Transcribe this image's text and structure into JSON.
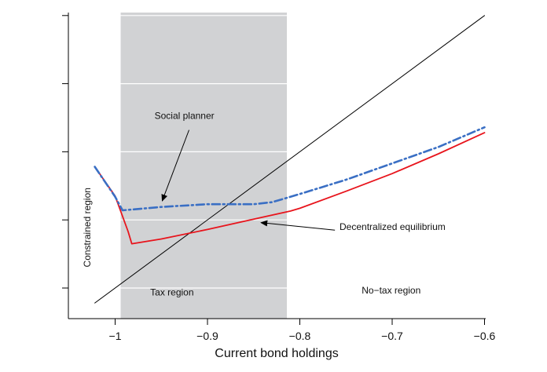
{
  "chart_data": {
    "type": "line",
    "xlabel": "Current bond holdings",
    "ylabel": "",
    "xlim": [
      -1.05,
      -0.6
    ],
    "ylim": [
      -1.05,
      -0.6
    ],
    "x_ticks": [
      -1.0,
      -0.9,
      -0.8,
      -0.7,
      -0.6
    ],
    "x_tick_labels": [
      "−1",
      "−0.9",
      "−0.8",
      "−0.7",
      "−0.6"
    ],
    "y_ticks": [
      -1.0,
      -0.9,
      -0.8,
      -0.7,
      -0.6
    ],
    "y_tick_labels": [
      "",
      "",
      "",
      "",
      ""
    ],
    "grid": "horizontal",
    "shaded_region": {
      "x_start": -0.994,
      "x_end": -0.814,
      "color": "#d1d2d4"
    },
    "series": [
      {
        "name": "",
        "style": "solid",
        "color": "#000000",
        "x": [
          -1.022,
          -0.6
        ],
        "y": [
          -1.022,
          -0.6
        ]
      },
      {
        "name": "Decentralized equilibrium",
        "style": "solid",
        "color": "#e8141c",
        "x": [
          -1.022,
          -1.0,
          -0.986,
          -0.982,
          -0.95,
          -0.9,
          -0.85,
          -0.81,
          -0.8,
          -0.75,
          -0.7,
          -0.65,
          -0.6
        ],
        "y": [
          -0.822,
          -0.865,
          -0.917,
          -0.935,
          -0.928,
          -0.914,
          -0.899,
          -0.887,
          -0.883,
          -0.858,
          -0.832,
          -0.803,
          -0.772
        ]
      },
      {
        "name": "Social planner",
        "style": "dashdot",
        "color": "#3a6fc4",
        "x": [
          -1.022,
          -1.0,
          -0.992,
          -0.95,
          -0.9,
          -0.85,
          -0.83,
          -0.8,
          -0.75,
          -0.7,
          -0.65,
          -0.6
        ],
        "y": [
          -0.822,
          -0.866,
          -0.886,
          -0.881,
          -0.877,
          -0.877,
          -0.874,
          -0.862,
          -0.841,
          -0.817,
          -0.793,
          -0.764
        ]
      }
    ],
    "annotations": [
      {
        "id": "social",
        "text": "Social planner",
        "text_x": -0.925,
        "text_y": -0.752,
        "arrow_from": [
          -0.92,
          -0.768
        ],
        "arrow_to": [
          -0.949,
          -0.872
        ]
      },
      {
        "id": "decentralized",
        "text": "Decentralized equilibrium",
        "text_x": -0.757,
        "text_y": -0.915,
        "arrow_from": [
          -0.762,
          -0.915
        ],
        "arrow_to": [
          -0.842,
          -0.904
        ]
      },
      {
        "id": "tax",
        "text": "Tax region",
        "text_x": -0.962,
        "text_y": -1.011
      },
      {
        "id": "notax",
        "text": "No−tax region",
        "text_x": -0.733,
        "text_y": -1.008
      },
      {
        "id": "constrained",
        "text": "Constrained region",
        "text_x": -1.027,
        "text_y": -0.911,
        "rotate": -90
      }
    ]
  }
}
